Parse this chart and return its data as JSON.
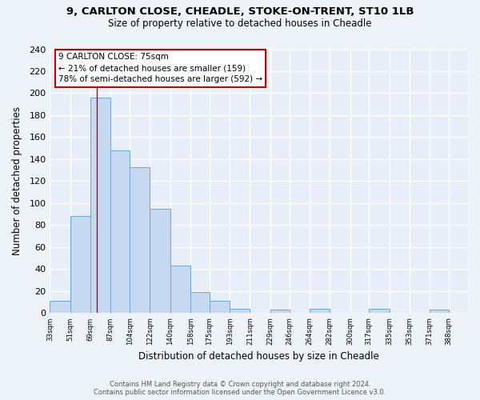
{
  "title_line1": "9, CARLTON CLOSE, CHEADLE, STOKE-ON-TRENT, ST10 1LB",
  "title_line2": "Size of property relative to detached houses in Cheadle",
  "xlabel": "Distribution of detached houses by size in Cheadle",
  "ylabel": "Number of detached properties",
  "bar_left_edges": [
    33,
    51,
    69,
    87,
    104,
    122,
    140,
    158,
    175,
    193,
    211,
    229,
    246,
    264,
    282,
    300,
    317,
    335,
    353,
    371
  ],
  "bar_widths": [
    18,
    18,
    18,
    17,
    18,
    18,
    18,
    17,
    18,
    18,
    18,
    17,
    18,
    18,
    18,
    17,
    18,
    18,
    18,
    17
  ],
  "bar_heights": [
    11,
    88,
    196,
    148,
    133,
    95,
    43,
    19,
    11,
    4,
    0,
    3,
    0,
    4,
    0,
    0,
    4,
    0,
    0,
    3
  ],
  "bar_color": "#c6d9f0",
  "bar_edge_color": "#6ea6d0",
  "tick_labels": [
    "33sqm",
    "51sqm",
    "69sqm",
    "87sqm",
    "104sqm",
    "122sqm",
    "140sqm",
    "158sqm",
    "175sqm",
    "193sqm",
    "211sqm",
    "229sqm",
    "246sqm",
    "264sqm",
    "282sqm",
    "300sqm",
    "317sqm",
    "335sqm",
    "353sqm",
    "371sqm",
    "388sqm"
  ],
  "tick_positions": [
    33,
    51,
    69,
    87,
    104,
    122,
    140,
    158,
    175,
    193,
    211,
    229,
    246,
    264,
    282,
    300,
    317,
    335,
    353,
    371,
    388
  ],
  "xlim_min": 33,
  "xlim_max": 405,
  "ylim": [
    0,
    240
  ],
  "yticks": [
    0,
    20,
    40,
    60,
    80,
    100,
    120,
    140,
    160,
    180,
    200,
    220,
    240
  ],
  "property_line_x": 75,
  "property_line_color": "#cc0000",
  "annotation_title": "9 CARLTON CLOSE: 75sqm",
  "annotation_line1": "← 21% of detached houses are smaller (159)",
  "annotation_line2": "78% of semi-detached houses are larger (592) →",
  "footer_line1": "Contains HM Land Registry data © Crown copyright and database right 2024.",
  "footer_line2": "Contains public sector information licensed under the Open Government Licence v3.0.",
  "background_color": "#eef2f9",
  "plot_background_color": "#e8eef8",
  "grid_color": "#ffffff"
}
